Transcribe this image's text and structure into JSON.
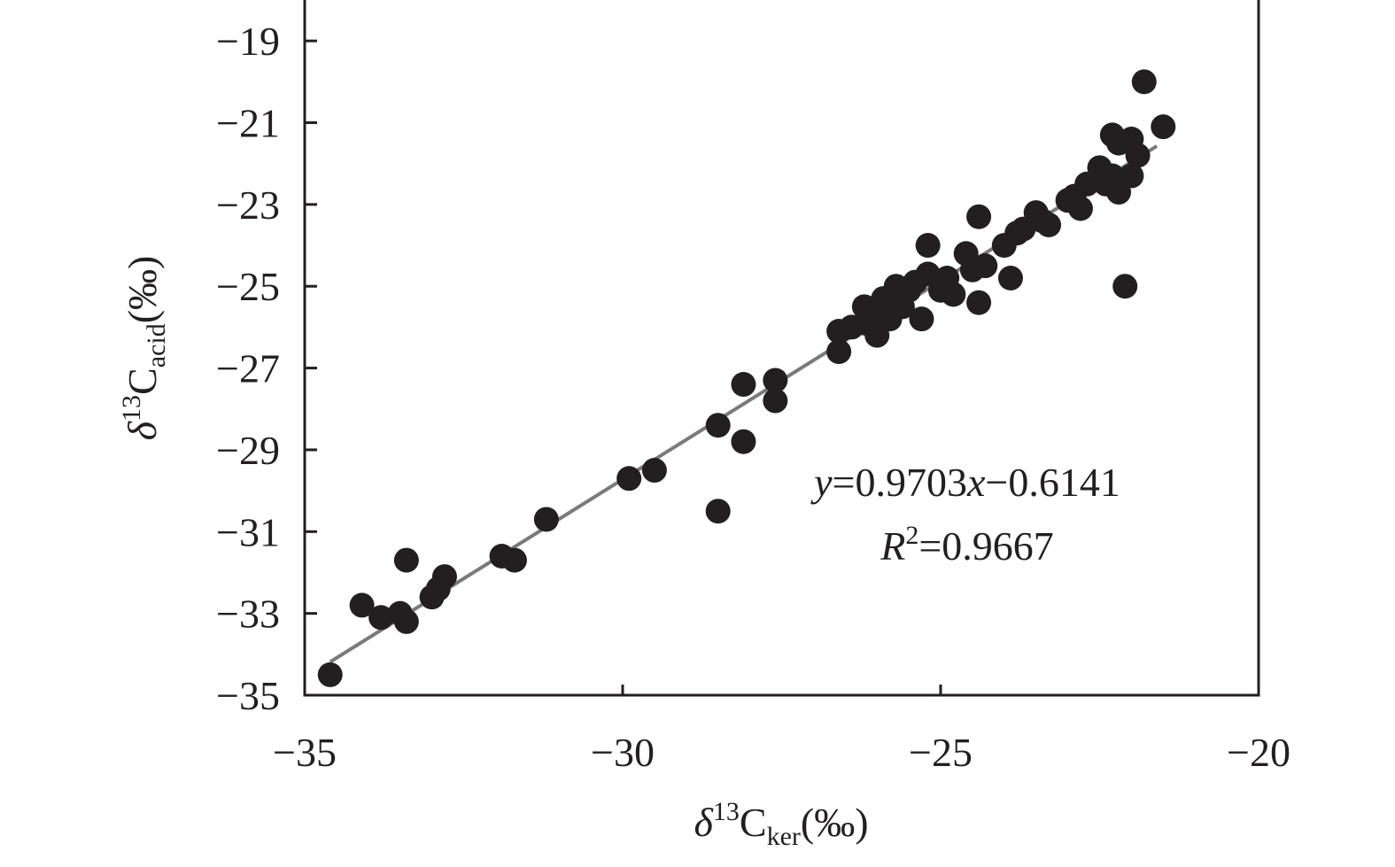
{
  "chart_data": {
    "type": "scatter",
    "title": "",
    "xlabel": {
      "prefix": "δ",
      "sup": "13",
      "base": "C",
      "sub": "ker",
      "suffix": "(‰)"
    },
    "ylabel": {
      "prefix": "δ",
      "sup": "13",
      "base": "C",
      "sub": "acid",
      "suffix": "(‰)"
    },
    "xlim": [
      -35,
      -20
    ],
    "ylim": [
      -35,
      -18
    ],
    "xticks": [
      -35,
      -30,
      -25,
      -20
    ],
    "xtick_labels": [
      "−35",
      "−30",
      "−25",
      "−20"
    ],
    "yticks": [
      -35,
      -33,
      -31,
      -29,
      -27,
      -25,
      -23,
      -21,
      -19
    ],
    "ytick_labels": [
      "−35",
      "−33",
      "−31",
      "−29",
      "−27",
      "−25",
      "−23",
      "−21",
      "−19"
    ],
    "grid": false,
    "colors": {
      "points": "#231f20",
      "fit_line": "#7a7a7a",
      "frame": "#231f20"
    },
    "points": [
      [
        -34.6,
        -34.5
      ],
      [
        -34.1,
        -32.8
      ],
      [
        -33.8,
        -33.1
      ],
      [
        -33.5,
        -33.0
      ],
      [
        -33.4,
        -33.2
      ],
      [
        -33.4,
        -31.7
      ],
      [
        -33.0,
        -32.6
      ],
      [
        -32.9,
        -32.4
      ],
      [
        -32.8,
        -32.1
      ],
      [
        -31.9,
        -31.6
      ],
      [
        -31.7,
        -31.7
      ],
      [
        -31.2,
        -30.7
      ],
      [
        -29.9,
        -29.7
      ],
      [
        -29.5,
        -29.5
      ],
      [
        -28.5,
        -28.4
      ],
      [
        -28.5,
        -30.5
      ],
      [
        -28.1,
        -27.4
      ],
      [
        -28.1,
        -28.8
      ],
      [
        -27.6,
        -27.3
      ],
      [
        -27.6,
        -27.8
      ],
      [
        -26.6,
        -26.6
      ],
      [
        -26.6,
        -26.1
      ],
      [
        -26.4,
        -26.0
      ],
      [
        -26.2,
        -25.5
      ],
      [
        -26.2,
        -25.9
      ],
      [
        -26.0,
        -25.7
      ],
      [
        -26.0,
        -26.2
      ],
      [
        -25.9,
        -25.3
      ],
      [
        -25.8,
        -25.8
      ],
      [
        -25.7,
        -25.0
      ],
      [
        -25.6,
        -25.5
      ],
      [
        -25.5,
        -25.1
      ],
      [
        -25.4,
        -24.9
      ],
      [
        -25.3,
        -25.8
      ],
      [
        -25.2,
        -24.0
      ],
      [
        -25.2,
        -24.7
      ],
      [
        -25.0,
        -25.1
      ],
      [
        -24.9,
        -24.8
      ],
      [
        -24.8,
        -25.2
      ],
      [
        -24.6,
        -24.2
      ],
      [
        -24.5,
        -24.6
      ],
      [
        -24.4,
        -23.3
      ],
      [
        -24.4,
        -25.4
      ],
      [
        -24.3,
        -24.5
      ],
      [
        -24.0,
        -24.0
      ],
      [
        -23.9,
        -24.8
      ],
      [
        -23.8,
        -23.7
      ],
      [
        -23.7,
        -23.6
      ],
      [
        -23.5,
        -23.2
      ],
      [
        -23.4,
        -23.4
      ],
      [
        -23.3,
        -23.5
      ],
      [
        -23.0,
        -22.9
      ],
      [
        -22.9,
        -22.8
      ],
      [
        -22.8,
        -23.1
      ],
      [
        -22.7,
        -22.5
      ],
      [
        -22.5,
        -22.1
      ],
      [
        -22.4,
        -22.5
      ],
      [
        -22.3,
        -22.3
      ],
      [
        -22.3,
        -21.3
      ],
      [
        -22.2,
        -22.7
      ],
      [
        -22.2,
        -21.5
      ],
      [
        -22.1,
        -25.0
      ],
      [
        -22.0,
        -21.4
      ],
      [
        -22.0,
        -22.3
      ],
      [
        -21.9,
        -21.8
      ],
      [
        -21.8,
        -20.0
      ],
      [
        -21.5,
        -21.1
      ]
    ],
    "fit": {
      "slope": 0.9703,
      "intercept": -0.6141,
      "x_range": [
        -34.6,
        -21.6
      ]
    },
    "annotations": {
      "equation": {
        "y": "y",
        "eq1": "=0.9703",
        "x": "x",
        "eq2": "−0.6141"
      },
      "r2": {
        "R": "R",
        "sup": "2",
        "rest": "=0.9667"
      }
    }
  }
}
